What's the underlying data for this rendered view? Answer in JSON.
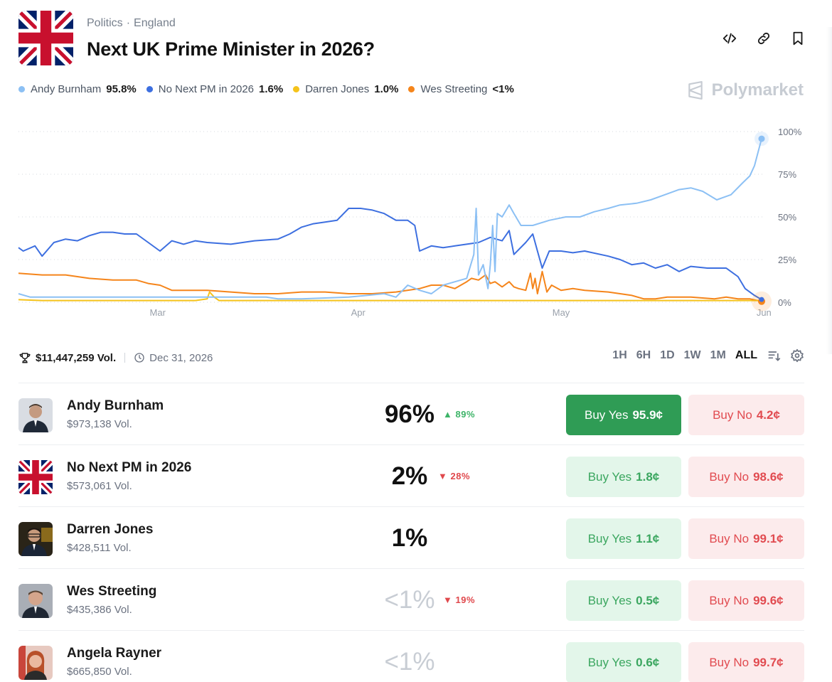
{
  "header": {
    "category": "Politics",
    "subcategory": "England",
    "separator": "·",
    "title": "Next UK Prime Minister in 2026?"
  },
  "legend": [
    {
      "name": "Andy Burnham",
      "value": "95.8%",
      "color": "#8cc0f4"
    },
    {
      "name": "No Next PM in 2026",
      "value": "1.6%",
      "color": "#3d6fe0"
    },
    {
      "name": "Darren Jones",
      "value": "1.0%",
      "color": "#f5c31b"
    },
    {
      "name": "Wes Streeting",
      "value": "<1%",
      "color": "#f5851b"
    }
  ],
  "brand": "Polymarket",
  "chart_data": {
    "type": "line",
    "x_ticks": [
      "Mar",
      "Apr",
      "May",
      "Jun"
    ],
    "y_ticks": [
      "100%",
      "75%",
      "50%",
      "25%",
      "0%"
    ],
    "ylim": [
      0,
      100
    ],
    "grid": true,
    "legend_placement": "top-left",
    "series": [
      {
        "name": "Andy Burnham",
        "color": "#8cc0f4",
        "values": [
          [
            0,
            5
          ],
          [
            5,
            3
          ],
          [
            20,
            3
          ],
          [
            50,
            3
          ],
          [
            80,
            3
          ],
          [
            105,
            3
          ],
          [
            110,
            2
          ],
          [
            120,
            2
          ],
          [
            140,
            3
          ],
          [
            155,
            5
          ],
          [
            160,
            3
          ],
          [
            165,
            10
          ],
          [
            170,
            7
          ],
          [
            175,
            5
          ],
          [
            180,
            10
          ],
          [
            185,
            12
          ],
          [
            190,
            14
          ],
          [
            193,
            28
          ],
          [
            194,
            55
          ],
          [
            195,
            16
          ],
          [
            197,
            22
          ],
          [
            199,
            8
          ],
          [
            200,
            22
          ],
          [
            201,
            45
          ],
          [
            202,
            18
          ],
          [
            203,
            52
          ],
          [
            205,
            50
          ],
          [
            208,
            57
          ],
          [
            210,
            52
          ],
          [
            213,
            45
          ],
          [
            218,
            45
          ],
          [
            225,
            48
          ],
          [
            232,
            50
          ],
          [
            238,
            50
          ],
          [
            244,
            53
          ],
          [
            250,
            55
          ],
          [
            255,
            57
          ],
          [
            262,
            58
          ],
          [
            268,
            60
          ],
          [
            274,
            63
          ],
          [
            280,
            66
          ],
          [
            285,
            67
          ],
          [
            290,
            65
          ],
          [
            296,
            60
          ],
          [
            302,
            63
          ],
          [
            307,
            70
          ],
          [
            310,
            74
          ],
          [
            312,
            80
          ],
          [
            315,
            95.8
          ]
        ]
      },
      {
        "name": "No Next PM in 2026",
        "color": "#3d6fe0",
        "values": [
          [
            0,
            32
          ],
          [
            2,
            30
          ],
          [
            7,
            33
          ],
          [
            10,
            27
          ],
          [
            15,
            35
          ],
          [
            20,
            37
          ],
          [
            25,
            36
          ],
          [
            30,
            39
          ],
          [
            35,
            41
          ],
          [
            40,
            41
          ],
          [
            45,
            40
          ],
          [
            50,
            40
          ],
          [
            55,
            35
          ],
          [
            60,
            30
          ],
          [
            65,
            36
          ],
          [
            70,
            34
          ],
          [
            75,
            36
          ],
          [
            80,
            35
          ],
          [
            90,
            34
          ],
          [
            100,
            36
          ],
          [
            110,
            37
          ],
          [
            115,
            40
          ],
          [
            120,
            44
          ],
          [
            125,
            46
          ],
          [
            130,
            47
          ],
          [
            135,
            48
          ],
          [
            140,
            55
          ],
          [
            145,
            55
          ],
          [
            150,
            54
          ],
          [
            155,
            52
          ],
          [
            160,
            48
          ],
          [
            165,
            48
          ],
          [
            168,
            45
          ],
          [
            170,
            30
          ],
          [
            175,
            33
          ],
          [
            180,
            32
          ],
          [
            185,
            33
          ],
          [
            190,
            34
          ],
          [
            195,
            35
          ],
          [
            200,
            38
          ],
          [
            205,
            36
          ],
          [
            208,
            42
          ],
          [
            210,
            28
          ],
          [
            215,
            35
          ],
          [
            218,
            40
          ],
          [
            220,
            30
          ],
          [
            222,
            20
          ],
          [
            225,
            30
          ],
          [
            230,
            30
          ],
          [
            235,
            29
          ],
          [
            240,
            30
          ],
          [
            250,
            27
          ],
          [
            255,
            25
          ],
          [
            260,
            22
          ],
          [
            265,
            23
          ],
          [
            270,
            20
          ],
          [
            275,
            22
          ],
          [
            280,
            18
          ],
          [
            285,
            21
          ],
          [
            292,
            20
          ],
          [
            300,
            20
          ],
          [
            305,
            15
          ],
          [
            308,
            8
          ],
          [
            312,
            4
          ],
          [
            315,
            1.6
          ]
        ]
      },
      {
        "name": "Darren Jones",
        "color": "#f5c31b",
        "values": [
          [
            0,
            1.5
          ],
          [
            10,
            1
          ],
          [
            30,
            1
          ],
          [
            50,
            1
          ],
          [
            60,
            1
          ],
          [
            75,
            1
          ],
          [
            80,
            2
          ],
          [
            81,
            6
          ],
          [
            83,
            3
          ],
          [
            85,
            1
          ],
          [
            100,
            1
          ],
          [
            140,
            1
          ],
          [
            180,
            1
          ],
          [
            200,
            1
          ],
          [
            240,
            1
          ],
          [
            280,
            1
          ],
          [
            300,
            1
          ],
          [
            315,
            1.0
          ]
        ]
      },
      {
        "name": "Wes Streeting",
        "color": "#f5851b",
        "values": [
          [
            0,
            17
          ],
          [
            10,
            16
          ],
          [
            20,
            16
          ],
          [
            30,
            14
          ],
          [
            40,
            13
          ],
          [
            50,
            13
          ],
          [
            55,
            11
          ],
          [
            60,
            10
          ],
          [
            65,
            7
          ],
          [
            70,
            7
          ],
          [
            80,
            7
          ],
          [
            90,
            6
          ],
          [
            100,
            5
          ],
          [
            110,
            5
          ],
          [
            120,
            6
          ],
          [
            130,
            6
          ],
          [
            140,
            5
          ],
          [
            150,
            5
          ],
          [
            160,
            6
          ],
          [
            170,
            8
          ],
          [
            175,
            10
          ],
          [
            180,
            10
          ],
          [
            185,
            8
          ],
          [
            190,
            12
          ],
          [
            192,
            14
          ],
          [
            195,
            13
          ],
          [
            198,
            16
          ],
          [
            200,
            11
          ],
          [
            202,
            12
          ],
          [
            205,
            9
          ],
          [
            208,
            12
          ],
          [
            210,
            9
          ],
          [
            212,
            8
          ],
          [
            215,
            7
          ],
          [
            217,
            17
          ],
          [
            218,
            8
          ],
          [
            219,
            14
          ],
          [
            220,
            5
          ],
          [
            222,
            18
          ],
          [
            224,
            6
          ],
          [
            226,
            10
          ],
          [
            230,
            7
          ],
          [
            235,
            8
          ],
          [
            240,
            7
          ],
          [
            250,
            6
          ],
          [
            260,
            4
          ],
          [
            265,
            2
          ],
          [
            270,
            2
          ],
          [
            275,
            3
          ],
          [
            285,
            3
          ],
          [
            295,
            2
          ],
          [
            300,
            3
          ],
          [
            305,
            2
          ],
          [
            310,
            2
          ],
          [
            315,
            0.5
          ]
        ]
      }
    ]
  },
  "stats": {
    "volume": "$11,447,259 Vol.",
    "end_date": "Dec 31, 2026"
  },
  "ranges": [
    "1H",
    "6H",
    "1D",
    "1W",
    "1M",
    "ALL"
  ],
  "active_range": "ALL",
  "outcomes": [
    {
      "name": "Andy Burnham",
      "volume": "$973,138 Vol.",
      "chance": "96%",
      "change": "89%",
      "change_dir": "up",
      "yes_label": "Buy Yes",
      "yes_price": "95.9¢",
      "no_label": "Buy No",
      "no_price": "4.2¢",
      "avatar": "person-photo"
    },
    {
      "name": "No Next PM in 2026",
      "volume": "$573,061 Vol.",
      "chance": "2%",
      "change": "28%",
      "change_dir": "down",
      "yes_label": "Buy Yes",
      "yes_price": "1.8¢",
      "no_label": "Buy No",
      "no_price": "98.6¢",
      "avatar": "uk-flag"
    },
    {
      "name": "Darren Jones",
      "volume": "$428,511 Vol.",
      "chance": "1%",
      "change": "",
      "change_dir": "",
      "yes_label": "Buy Yes",
      "yes_price": "1.1¢",
      "no_label": "Buy No",
      "no_price": "99.1¢",
      "avatar": "person-photo"
    },
    {
      "name": "Wes Streeting",
      "volume": "$435,386 Vol.",
      "chance": "<1%",
      "change": "19%",
      "change_dir": "down",
      "yes_label": "Buy Yes",
      "yes_price": "0.5¢",
      "no_label": "Buy No",
      "no_price": "99.6¢",
      "avatar": "person-photo"
    },
    {
      "name": "Angela Rayner",
      "volume": "$665,850 Vol.",
      "chance": "<1%",
      "change": "",
      "change_dir": "",
      "yes_label": "Buy Yes",
      "yes_price": "0.6¢",
      "no_label": "Buy No",
      "no_price": "99.7¢",
      "avatar": "person-photo"
    }
  ],
  "colors": {
    "yes_green": "#2f9c55",
    "no_red": "#e14b50",
    "up": "#3db468",
    "down": "#e0484c"
  }
}
